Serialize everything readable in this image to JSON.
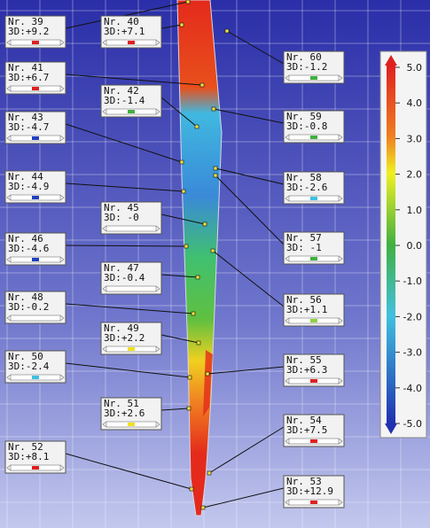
{
  "callouts": [
    {
      "nr": "Nr. 39",
      "dev": "3D:+9.2",
      "color": "#e02020"
    },
    {
      "nr": "Nr. 40",
      "dev": "3D:+7.1",
      "color": "#e02020"
    },
    {
      "nr": "Nr. 41",
      "dev": "3D:+6.7",
      "color": "#e02020"
    },
    {
      "nr": "Nr. 42",
      "dev": "3D:-1.4",
      "color": "#40b040"
    },
    {
      "nr": "Nr. 43",
      "dev": "3D:-4.7",
      "color": "#2040c0"
    },
    {
      "nr": "Nr. 44",
      "dev": "3D:-4.9",
      "color": "#2040c0"
    },
    {
      "nr": "Nr. 45",
      "dev": "3D: -0"
    },
    {
      "nr": "Nr. 46",
      "dev": "3D:-4.6",
      "color": "#2040c0"
    },
    {
      "nr": "Nr. 47",
      "dev": "3D:-0.4"
    },
    {
      "nr": "Nr. 48",
      "dev": "3D:-0.2"
    },
    {
      "nr": "Nr. 49",
      "dev": "3D:+2.2",
      "color": "#f0e020"
    },
    {
      "nr": "Nr. 50",
      "dev": "3D:-2.4",
      "color": "#40c0e0"
    },
    {
      "nr": "Nr. 51",
      "dev": "3D:+2.6",
      "color": "#f0e020"
    },
    {
      "nr": "Nr. 52",
      "dev": "3D:+8.1",
      "color": "#e02020"
    },
    {
      "nr": "Nr. 53",
      "dev": "3D:+12.9",
      "color": "#e02020"
    },
    {
      "nr": "Nr. 54",
      "dev": "3D:+7.5",
      "color": "#e02020"
    },
    {
      "nr": "Nr. 55",
      "dev": "3D:+6.3",
      "color": "#e02020"
    },
    {
      "nr": "Nr. 56",
      "dev": "3D:+1.1",
      "color": "#90d040"
    },
    {
      "nr": "Nr. 57",
      "dev": "3D: -1",
      "color": "#40b040"
    },
    {
      "nr": "Nr. 58",
      "dev": "3D:-2.6",
      "color": "#40c0e0"
    },
    {
      "nr": "Nr. 59",
      "dev": "3D:-0.8",
      "color": "#40b040"
    },
    {
      "nr": "Nr. 60",
      "dev": "3D:-1.2",
      "color": "#40b040"
    }
  ],
  "color_scale": {
    "labels": [
      "5.0",
      "4.0",
      "3.0",
      "2.0",
      "1.0",
      "0.0",
      "-1.0",
      "-2.0",
      "-3.0",
      "-4.0",
      "-5.0"
    ]
  }
}
